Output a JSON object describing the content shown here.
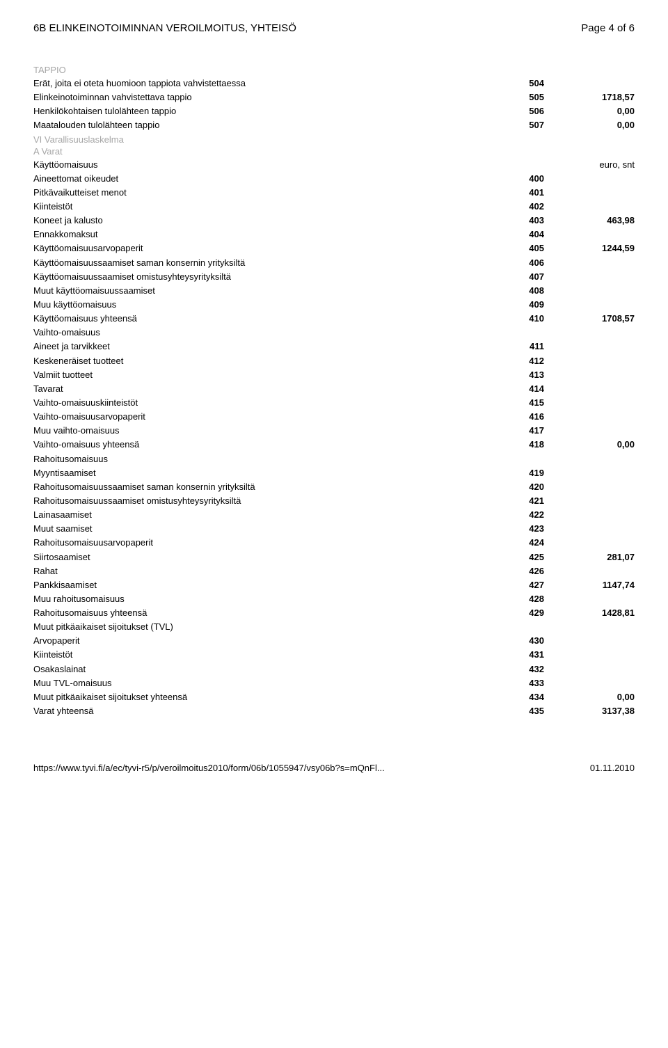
{
  "header": {
    "left": "6B ELINKEINOTOIMINNAN VEROILMOITUS, YHTEISÖ",
    "right": "Page 4 of 6"
  },
  "sections": {
    "tappio_title": "TAPPIO",
    "vi_title": "VI Varallisuuslaskelma",
    "a_varat": "A Varat",
    "euro_snt": "euro, snt"
  },
  "rows": [
    {
      "label": "Erät, joita ei oteta huomioon tappiota vahvistettaessa",
      "code": "504",
      "value": ""
    },
    {
      "label": "Elinkeinotoiminnan vahvistettava tappio",
      "code": "505",
      "value": "1718,57"
    },
    {
      "label": "Henkilökohtaisen tulolähteen tappio",
      "code": "506",
      "value": "0,00"
    },
    {
      "label": "Maatalouden tulolähteen tappio",
      "code": "507",
      "value": "0,00"
    }
  ],
  "kaytt_title": "Käyttöomaisuus",
  "kaytt": [
    {
      "label": "Aineettomat oikeudet",
      "code": "400",
      "value": ""
    },
    {
      "label": "Pitkävaikutteiset menot",
      "code": "401",
      "value": ""
    },
    {
      "label": "Kiinteistöt",
      "code": "402",
      "value": ""
    },
    {
      "label": "Koneet ja kalusto",
      "code": "403",
      "value": "463,98"
    },
    {
      "label": "Ennakkomaksut",
      "code": "404",
      "value": ""
    },
    {
      "label": "Käyttöomaisuusarvopaperit",
      "code": "405",
      "value": "1244,59"
    },
    {
      "label": "Käyttöomaisuussaamiset saman konsernin yrityksiltä",
      "code": "406",
      "value": ""
    },
    {
      "label": "Käyttöomaisuussaamiset omistusyhteysyrityksiltä",
      "code": "407",
      "value": ""
    },
    {
      "label": "Muut käyttöomaisuussaamiset",
      "code": "408",
      "value": ""
    },
    {
      "label": "Muu käyttöomaisuus",
      "code": "409",
      "value": ""
    },
    {
      "label": "Käyttöomaisuus yhteensä",
      "code": "410",
      "value": "1708,57"
    }
  ],
  "vaihto_title": "Vaihto-omaisuus",
  "vaihto": [
    {
      "label": "Aineet ja tarvikkeet",
      "code": "411",
      "value": ""
    },
    {
      "label": "Keskeneräiset tuotteet",
      "code": "412",
      "value": ""
    },
    {
      "label": "Valmiit tuotteet",
      "code": "413",
      "value": ""
    },
    {
      "label": "Tavarat",
      "code": "414",
      "value": ""
    },
    {
      "label": "Vaihto-omaisuuskiinteistöt",
      "code": "415",
      "value": ""
    },
    {
      "label": "Vaihto-omaisuusarvopaperit",
      "code": "416",
      "value": ""
    },
    {
      "label": "Muu vaihto-omaisuus",
      "code": "417",
      "value": ""
    },
    {
      "label": "Vaihto-omaisuus yhteensä",
      "code": "418",
      "value": "0,00"
    }
  ],
  "rahoitus_title": "Rahoitusomaisuus",
  "rahoitus": [
    {
      "label": "Myyntisaamiset",
      "code": "419",
      "value": ""
    },
    {
      "label": "Rahoitusomaisuussaamiset saman konsernin yrityksiltä",
      "code": "420",
      "value": ""
    },
    {
      "label": "Rahoitusomaisuussaamiset omistusyhteysyrityksiltä",
      "code": "421",
      "value": ""
    },
    {
      "label": "Lainasaamiset",
      "code": "422",
      "value": ""
    },
    {
      "label": "Muut saamiset",
      "code": "423",
      "value": ""
    },
    {
      "label": "Rahoitusomaisuusarvopaperit",
      "code": "424",
      "value": ""
    },
    {
      "label": "Siirtosaamiset",
      "code": "425",
      "value": "281,07"
    },
    {
      "label": "Rahat",
      "code": "426",
      "value": ""
    },
    {
      "label": "Pankkisaamiset",
      "code": "427",
      "value": "1147,74"
    },
    {
      "label": "Muu rahoitusomaisuus",
      "code": "428",
      "value": ""
    },
    {
      "label": "Rahoitusomaisuus yhteensä",
      "code": "429",
      "value": "1428,81"
    }
  ],
  "tvl_title": "Muut pitkäaikaiset sijoitukset (TVL)",
  "tvl": [
    {
      "label": "Arvopaperit",
      "code": "430",
      "value": ""
    },
    {
      "label": "Kiinteistöt",
      "code": "431",
      "value": ""
    },
    {
      "label": "Osakaslainat",
      "code": "432",
      "value": ""
    },
    {
      "label": "Muu TVL-omaisuus",
      "code": "433",
      "value": ""
    },
    {
      "label": "Muut pitkäaikaiset sijoitukset yhteensä",
      "code": "434",
      "value": "0,00"
    },
    {
      "label": "Varat yhteensä",
      "code": "435",
      "value": "3137,38"
    }
  ],
  "footer": {
    "left": "https://www.tyvi.fi/a/ec/tyvi-r5/p/veroilmoitus2010/form/06b/1055947/vsy06b?s=mQnFl...",
    "right": "01.11.2010"
  }
}
